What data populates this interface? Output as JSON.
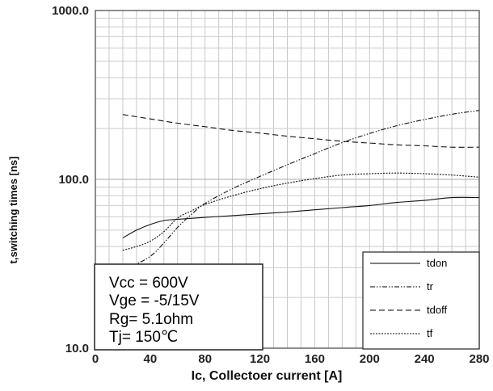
{
  "chart_data": {
    "type": "line",
    "xlabel": "Ic, Collectoer current [A]",
    "ylabel": "t,switching times [ns]",
    "xlim": [
      0,
      280
    ],
    "ylim": [
      10,
      1000
    ],
    "y_scale": "log",
    "grid": true,
    "legend_position": "bottom-right",
    "x_tick_labels": [
      "0",
      "40",
      "80",
      "120",
      "160",
      "200",
      "240",
      "280"
    ],
    "y_tick_labels": [
      "10.0",
      "100.0",
      "1000.0"
    ],
    "x_ticks": [
      0,
      40,
      80,
      120,
      160,
      200,
      240,
      280
    ],
    "y_ticks": [
      10,
      100,
      1000
    ],
    "series": [
      {
        "name": "tdon",
        "dash": "solid",
        "points": [
          [
            20,
            45
          ],
          [
            30,
            50
          ],
          [
            40,
            54
          ],
          [
            50,
            57
          ],
          [
            60,
            58
          ],
          [
            80,
            59.5
          ],
          [
            100,
            61
          ],
          [
            120,
            62.5
          ],
          [
            140,
            64
          ],
          [
            160,
            66
          ],
          [
            180,
            68
          ],
          [
            200,
            70
          ],
          [
            220,
            73
          ],
          [
            240,
            75
          ],
          [
            260,
            78
          ],
          [
            280,
            78
          ]
        ]
      },
      {
        "name": "tr",
        "dash": "dashdotdot",
        "points": [
          [
            25,
            30
          ],
          [
            40,
            35
          ],
          [
            50,
            42
          ],
          [
            60,
            52
          ],
          [
            70,
            62
          ],
          [
            80,
            72
          ],
          [
            100,
            88
          ],
          [
            120,
            104
          ],
          [
            140,
            122
          ],
          [
            160,
            142
          ],
          [
            180,
            165
          ],
          [
            200,
            187
          ],
          [
            220,
            208
          ],
          [
            240,
            226
          ],
          [
            260,
            243
          ],
          [
            280,
            256
          ]
        ]
      },
      {
        "name": "tdoff",
        "dash": "dashed",
        "points": [
          [
            20,
            242
          ],
          [
            40,
            228
          ],
          [
            60,
            215
          ],
          [
            80,
            205
          ],
          [
            100,
            195
          ],
          [
            120,
            188
          ],
          [
            140,
            180
          ],
          [
            160,
            174
          ],
          [
            180,
            168
          ],
          [
            200,
            164
          ],
          [
            220,
            160
          ],
          [
            240,
            158
          ],
          [
            260,
            155
          ],
          [
            280,
            155
          ]
        ]
      },
      {
        "name": "tf",
        "dash": "dotted",
        "points": [
          [
            20,
            38
          ],
          [
            30,
            40
          ],
          [
            40,
            43
          ],
          [
            50,
            49
          ],
          [
            60,
            59
          ],
          [
            70,
            65
          ],
          [
            80,
            71
          ],
          [
            100,
            80
          ],
          [
            120,
            88
          ],
          [
            140,
            95
          ],
          [
            160,
            101
          ],
          [
            180,
            106
          ],
          [
            200,
            108
          ],
          [
            220,
            109
          ],
          [
            240,
            108
          ],
          [
            260,
            106
          ],
          [
            280,
            103
          ]
        ]
      }
    ],
    "annotation_lines": [
      "Vcc = 600V",
      "Vge = -5/15V",
      "Rg= 5.1ohm",
      "Tj= 150℃"
    ]
  }
}
